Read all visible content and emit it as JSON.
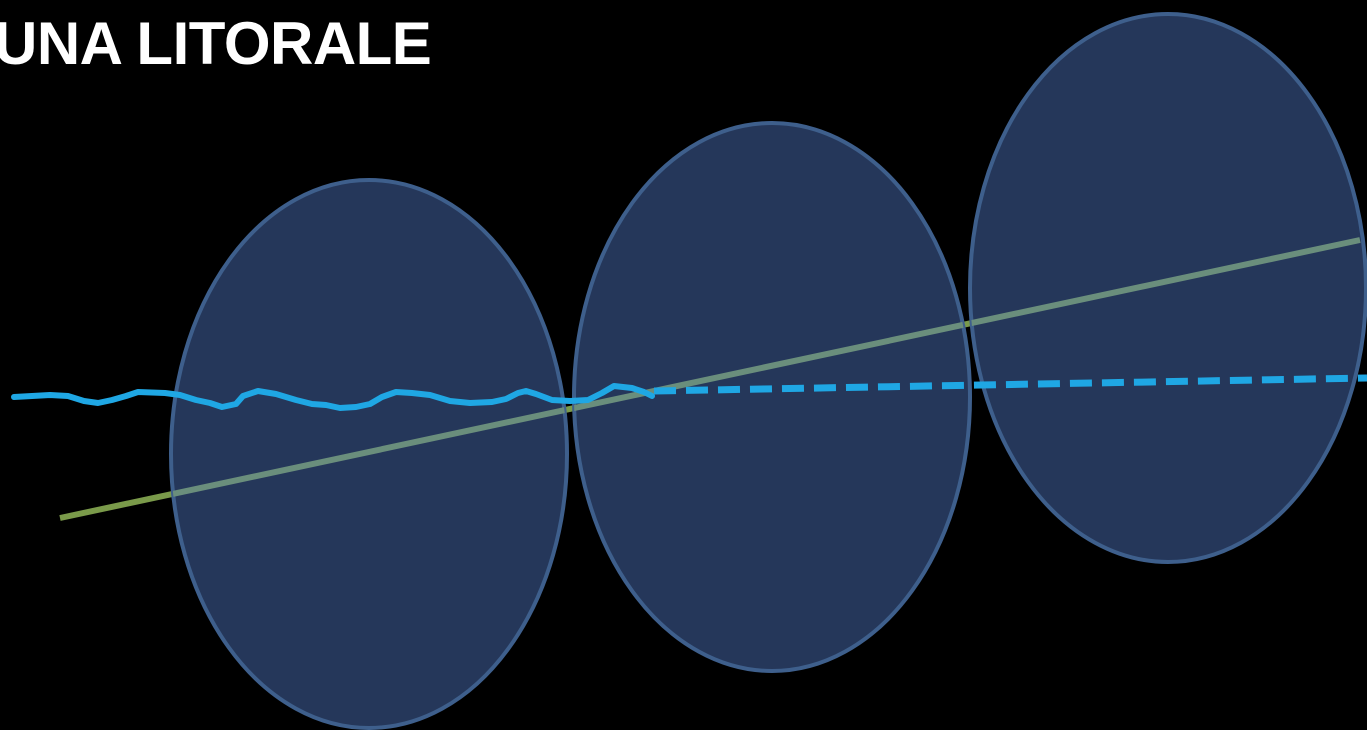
{
  "slide": {
    "title": "UNA LITORALE"
  },
  "colors": {
    "background": "#000000",
    "title_text": "#ffffff",
    "ellipse_fill": "#25375a",
    "ellipse_stroke": "#3e5f8c",
    "trend_line": "#7a9a4a",
    "trend_line_inside_ellipse": "#6a8e7c",
    "coastline": "#1fa7e4"
  },
  "diagram": {
    "shapes": [
      "ellipse",
      "ellipse",
      "ellipse"
    ],
    "lines": [
      {
        "role": "coastline",
        "style": "solid-wavy"
      },
      {
        "role": "coastline-projection",
        "style": "dashed"
      },
      {
        "role": "trend",
        "style": "solid"
      }
    ]
  }
}
